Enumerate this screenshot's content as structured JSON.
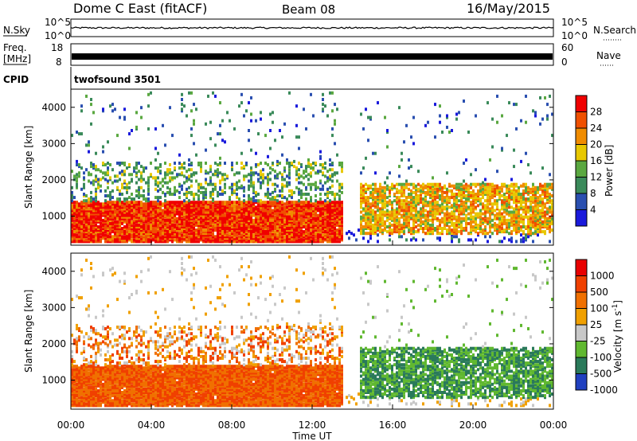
{
  "header": {
    "title": "Dome C East (fitACF)",
    "beam": "Beam 08",
    "date": "16/May/2015"
  },
  "noise_panel": {
    "left_label": "N.Sky",
    "right_label": "N.Search",
    "left_ticks": [
      "10^5",
      "10^0"
    ],
    "right_ticks": [
      "10^5",
      "10^0"
    ]
  },
  "freq_panel": {
    "left_label_top": "Freq.",
    "left_label_bottom": "[MHz]",
    "left_ticks": [
      "18",
      "8"
    ],
    "right_label": "Nave",
    "right_ticks": [
      "60",
      "0"
    ]
  },
  "cpid": {
    "label": "CPID",
    "value": "twofsound 3501"
  },
  "colors": {
    "power_scale": [
      "#1a1adc",
      "#2a4fb0",
      "#3a8a5a",
      "#5aa840",
      "#e8c800",
      "#f08c00",
      "#f05000",
      "#f00000"
    ],
    "velocity_scale": [
      "#e80000",
      "#f04000",
      "#f07000",
      "#f0a000",
      "#c8c8c8",
      "#60b830",
      "#2a7a5a",
      "#2040c0"
    ]
  },
  "chart_data": [
    {
      "type": "heatmap",
      "title": "",
      "ylabel": "Slant Range [km]",
      "xlabel": "",
      "ylim": [
        200,
        4500
      ],
      "xlim": [
        0,
        24
      ],
      "yticks": [
        "1000",
        "2000",
        "3000",
        "4000"
      ],
      "colorbar": {
        "label": "Power [dB]",
        "ticks": [
          "4",
          "8",
          "12",
          "16",
          "20",
          "24",
          "28"
        ],
        "range": [
          0,
          32
        ]
      }
    },
    {
      "type": "heatmap",
      "title": "",
      "ylabel": "Slant Range [km]",
      "xlabel": "Time UT",
      "ylim": [
        200,
        4500
      ],
      "xlim": [
        0,
        24
      ],
      "yticks": [
        "1000",
        "2000",
        "3000",
        "4000"
      ],
      "xticks": [
        "00:00",
        "04:00",
        "08:00",
        "12:00",
        "16:00",
        "20:00",
        "00:00"
      ],
      "colorbar": {
        "label": "Velocity [m s",
        "label_sup": "-1",
        "label_tail": "]",
        "ticks": [
          "1000",
          "500",
          "100",
          "25",
          "-25",
          "-100",
          "-500",
          "-1000"
        ]
      }
    }
  ]
}
